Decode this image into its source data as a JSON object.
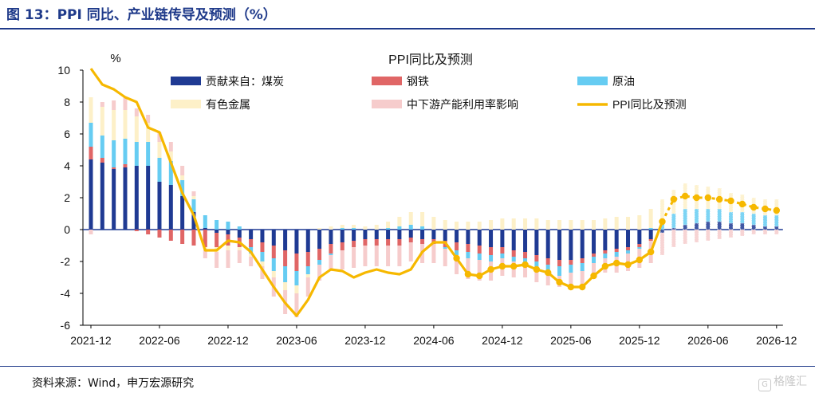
{
  "figure": {
    "title": "图 13：PPI 同比、产业链传导及预测（%）",
    "source": "资料来源：Wind，申万宏源研究",
    "watermark": "格隆汇"
  },
  "chart_data": {
    "type": "bar",
    "stacked": true,
    "title": "PPI同比及预测",
    "unit_label": "%",
    "ylim": [
      -6,
      10
    ],
    "yticks": [
      -6,
      -4,
      -2,
      0,
      2,
      4,
      6,
      8,
      10
    ],
    "xtick_labels": [
      "2021-12",
      "2022-06",
      "2022-12",
      "2023-06",
      "2023-12",
      "2024-06",
      "2024-12",
      "2025-06",
      "2025-12",
      "2026-06",
      "2026-12"
    ],
    "xtick_index": [
      0,
      6,
      12,
      18,
      24,
      30,
      36,
      42,
      48,
      54,
      60
    ],
    "forecast_start_index": 50,
    "months": [
      "2021-12",
      "2022-01",
      "2022-02",
      "2022-03",
      "2022-04",
      "2022-05",
      "2022-06",
      "2022-07",
      "2022-08",
      "2022-09",
      "2022-10",
      "2022-11",
      "2022-12",
      "2023-01",
      "2023-02",
      "2023-03",
      "2023-04",
      "2023-05",
      "2023-06",
      "2023-07",
      "2023-08",
      "2023-09",
      "2023-10",
      "2023-11",
      "2023-12",
      "2024-01",
      "2024-02",
      "2024-03",
      "2024-04",
      "2024-05",
      "2024-06",
      "2024-07",
      "2024-08",
      "2024-09",
      "2024-10",
      "2024-11",
      "2024-12",
      "2025-01",
      "2025-02",
      "2025-03",
      "2025-04",
      "2025-05",
      "2025-06",
      "2025-07",
      "2025-08",
      "2025-09",
      "2025-10",
      "2025-11",
      "2025-12",
      "2026-01",
      "2026-02",
      "2026-03",
      "2026-04",
      "2026-05",
      "2026-06",
      "2026-07",
      "2026-08",
      "2026-09",
      "2026-10",
      "2026-11",
      "2026-12"
    ],
    "colors": {
      "coal": "#1f3a93",
      "steel": "#e06666",
      "crude": "#66ccf2",
      "nonferrous": "#fdf0c8",
      "midstream": "#f6cccc",
      "ppi": "#f6b800",
      "axis": "#000000"
    },
    "series": [
      {
        "name": "贡献来自：煤炭",
        "kind": "bar",
        "values": [
          4.4,
          4.2,
          3.8,
          3.9,
          4.0,
          4.0,
          3.0,
          2.8,
          2.1,
          1.1,
          0.1,
          -0.2,
          -0.3,
          -0.5,
          -0.6,
          -0.8,
          -1.0,
          -1.3,
          -1.5,
          -1.4,
          -1.2,
          -0.9,
          -0.8,
          -0.7,
          -0.6,
          -0.6,
          -0.6,
          -0.6,
          -0.5,
          -0.6,
          -0.6,
          -0.7,
          -0.8,
          -0.9,
          -1.0,
          -1.1,
          -1.1,
          -1.3,
          -1.4,
          -1.6,
          -1.8,
          -1.9,
          -1.9,
          -1.8,
          -1.5,
          -1.3,
          -1.2,
          -1.1,
          -0.9,
          -0.6,
          -0.2,
          0.1,
          0.3,
          0.4,
          0.5,
          0.5,
          0.4,
          0.4,
          0.3,
          0.2,
          0.2
        ]
      },
      {
        "name": "钢铁",
        "kind": "bar",
        "values": [
          0.8,
          0.3,
          0.1,
          0.2,
          -0.1,
          -0.3,
          -0.5,
          -0.7,
          -0.9,
          -1.0,
          -1.1,
          -0.9,
          -0.7,
          -0.6,
          -0.5,
          -0.6,
          -0.8,
          -1.0,
          -1.1,
          -0.9,
          -0.7,
          -0.6,
          -0.5,
          -0.4,
          -0.4,
          -0.4,
          -0.4,
          -0.4,
          -0.3,
          -0.3,
          -0.3,
          -0.4,
          -0.5,
          -0.5,
          -0.5,
          -0.5,
          -0.4,
          -0.4,
          -0.4,
          -0.4,
          -0.4,
          -0.4,
          -0.3,
          -0.3,
          -0.2,
          -0.2,
          -0.2,
          -0.2,
          -0.2,
          -0.1,
          0.0,
          0.0,
          0.0,
          0.0,
          0.0,
          0.0,
          0.0,
          0.0,
          0.0,
          0.0,
          0.0
        ]
      },
      {
        "name": "原油",
        "kind": "bar",
        "values": [
          1.5,
          1.4,
          1.7,
          1.6,
          1.5,
          1.5,
          1.5,
          1.5,
          1.0,
          0.8,
          0.8,
          0.6,
          0.5,
          0.2,
          -0.4,
          -0.6,
          -0.8,
          -1.0,
          -0.9,
          -0.5,
          -0.3,
          -0.1,
          0.1,
          0.1,
          0.0,
          0.0,
          0.1,
          0.2,
          0.3,
          0.2,
          0.0,
          -0.1,
          -0.3,
          -0.4,
          -0.4,
          -0.4,
          -0.3,
          -0.3,
          -0.4,
          -0.5,
          -0.6,
          -0.6,
          -0.5,
          -0.5,
          -0.4,
          -0.3,
          -0.3,
          -0.2,
          -0.1,
          0.1,
          0.6,
          0.9,
          1.0,
          0.9,
          0.8,
          0.8,
          0.7,
          0.7,
          0.7,
          0.7,
          0.7
        ]
      },
      {
        "name": "有色金属",
        "kind": "bar",
        "values": [
          1.6,
          1.8,
          1.9,
          1.8,
          1.6,
          1.2,
          1.0,
          0.6,
          0.3,
          0.2,
          -0.2,
          -0.3,
          -0.3,
          -0.2,
          -0.2,
          -0.3,
          -0.4,
          -0.5,
          -0.5,
          -0.2,
          0.1,
          0.2,
          0.2,
          0.2,
          0.2,
          0.3,
          0.4,
          0.6,
          0.8,
          0.9,
          0.8,
          0.6,
          0.5,
          0.5,
          0.5,
          0.6,
          0.7,
          0.7,
          0.7,
          0.7,
          0.6,
          0.6,
          0.6,
          0.6,
          0.6,
          0.7,
          0.8,
          0.8,
          0.9,
          1.2,
          1.3,
          1.5,
          1.6,
          1.5,
          1.4,
          1.3,
          1.2,
          1.1,
          1.0,
          1.0,
          1.0
        ]
      },
      {
        "name": "中下游产能利用率影响",
        "kind": "bar",
        "values": [
          -0.3,
          0.3,
          0.6,
          0.8,
          0.5,
          0.5,
          0.6,
          0.6,
          0.6,
          0.3,
          -0.5,
          -1.0,
          -1.1,
          -0.8,
          -0.6,
          -0.8,
          -1.2,
          -1.5,
          -1.5,
          -1.2,
          -1.0,
          -1.0,
          -1.2,
          -1.3,
          -1.3,
          -1.3,
          -1.3,
          -1.3,
          -1.2,
          -1.2,
          -1.2,
          -1.1,
          -1.2,
          -1.3,
          -1.3,
          -1.2,
          -1.1,
          -1.0,
          -0.8,
          -0.8,
          -0.7,
          -0.7,
          -0.8,
          -0.8,
          -0.9,
          -0.9,
          -1.0,
          -1.1,
          -1.2,
          -1.4,
          -1.4,
          -1.1,
          -0.9,
          -0.8,
          -0.7,
          -0.6,
          -0.5,
          -0.4,
          -0.3,
          -0.3,
          -0.3
        ]
      },
      {
        "name": "PPI同比及预测",
        "kind": "line",
        "values": [
          10.1,
          9.1,
          8.8,
          8.3,
          8.0,
          6.4,
          6.1,
          4.2,
          2.3,
          0.9,
          -1.3,
          -1.3,
          -0.7,
          -0.8,
          -1.4,
          -2.5,
          -3.6,
          -4.6,
          -5.4,
          -4.4,
          -3.0,
          -2.5,
          -2.6,
          -3.0,
          -2.7,
          -2.5,
          -2.7,
          -2.8,
          -2.5,
          -1.4,
          -0.8,
          -0.8,
          -1.8,
          -2.8,
          -2.9,
          -2.5,
          -2.3,
          -2.3,
          -2.2,
          -2.5,
          -2.7,
          -3.3,
          -3.6,
          -3.6,
          -2.9,
          -2.3,
          -2.1,
          -2.2,
          -1.9,
          -1.4,
          0.5,
          1.9,
          2.1,
          2.0,
          2.0,
          1.9,
          1.8,
          1.6,
          1.4,
          1.3,
          1.2
        ]
      }
    ],
    "legend": [
      {
        "name": "贡献来自：煤炭",
        "symbol": "bar"
      },
      {
        "name": "钢铁",
        "symbol": "bar"
      },
      {
        "name": "原油",
        "symbol": "bar"
      },
      {
        "name": "有色金属",
        "symbol": "bar"
      },
      {
        "name": "中下游产能利用率影响",
        "symbol": "bar"
      },
      {
        "name": "PPI同比及预测",
        "symbol": "line"
      }
    ],
    "legend_placement": "top"
  }
}
